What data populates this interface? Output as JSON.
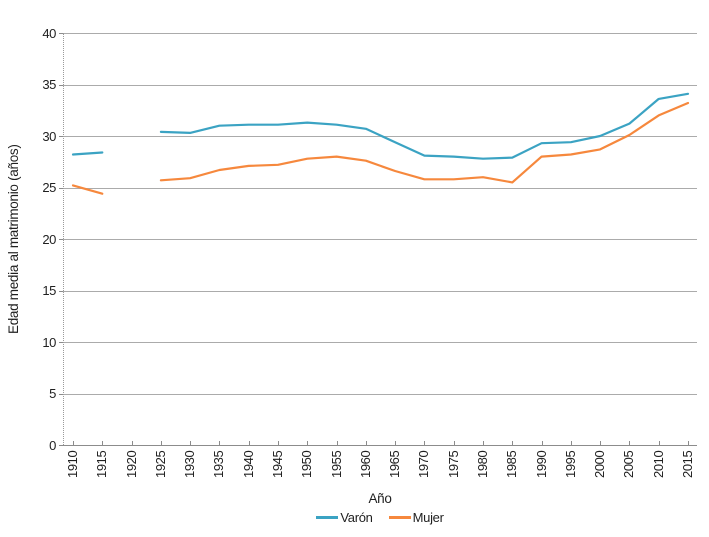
{
  "chart_data": {
    "type": "line",
    "title": "",
    "xlabel": "Año",
    "ylabel": "Edad media al matrimonio (años)",
    "x": [
      1910,
      1915,
      1920,
      1925,
      1930,
      1935,
      1940,
      1945,
      1950,
      1955,
      1960,
      1965,
      1970,
      1975,
      1980,
      1985,
      1990,
      1995,
      2000,
      2005,
      2010,
      2015
    ],
    "series": [
      {
        "name": "Varón",
        "color": "#3ba3c3",
        "values": [
          28.2,
          28.4,
          null,
          30.4,
          30.3,
          31.0,
          31.1,
          31.1,
          31.3,
          31.1,
          30.7,
          29.4,
          28.1,
          28.0,
          27.8,
          27.9,
          29.3,
          29.4,
          30.0,
          31.2,
          33.6,
          34.1
        ]
      },
      {
        "name": "Mujer",
        "color": "#f6883d",
        "values": [
          25.2,
          24.4,
          null,
          25.7,
          25.9,
          26.7,
          27.1,
          27.2,
          27.8,
          28.0,
          27.6,
          26.6,
          25.8,
          25.8,
          26.0,
          25.5,
          28.0,
          28.2,
          28.7,
          30.1,
          32.0,
          33.2
        ]
      }
    ],
    "ylim": [
      0,
      40
    ],
    "yticks": [
      0,
      5,
      10,
      15,
      20,
      25,
      30,
      35,
      40
    ],
    "grid": "horizontal",
    "grid_color": "#ababab",
    "axis_color": "#8c8c8c",
    "text_color": "#1f1f1f",
    "legend_position": "bottom",
    "missing_note": "no data for 1920 (gap in both lines)"
  }
}
